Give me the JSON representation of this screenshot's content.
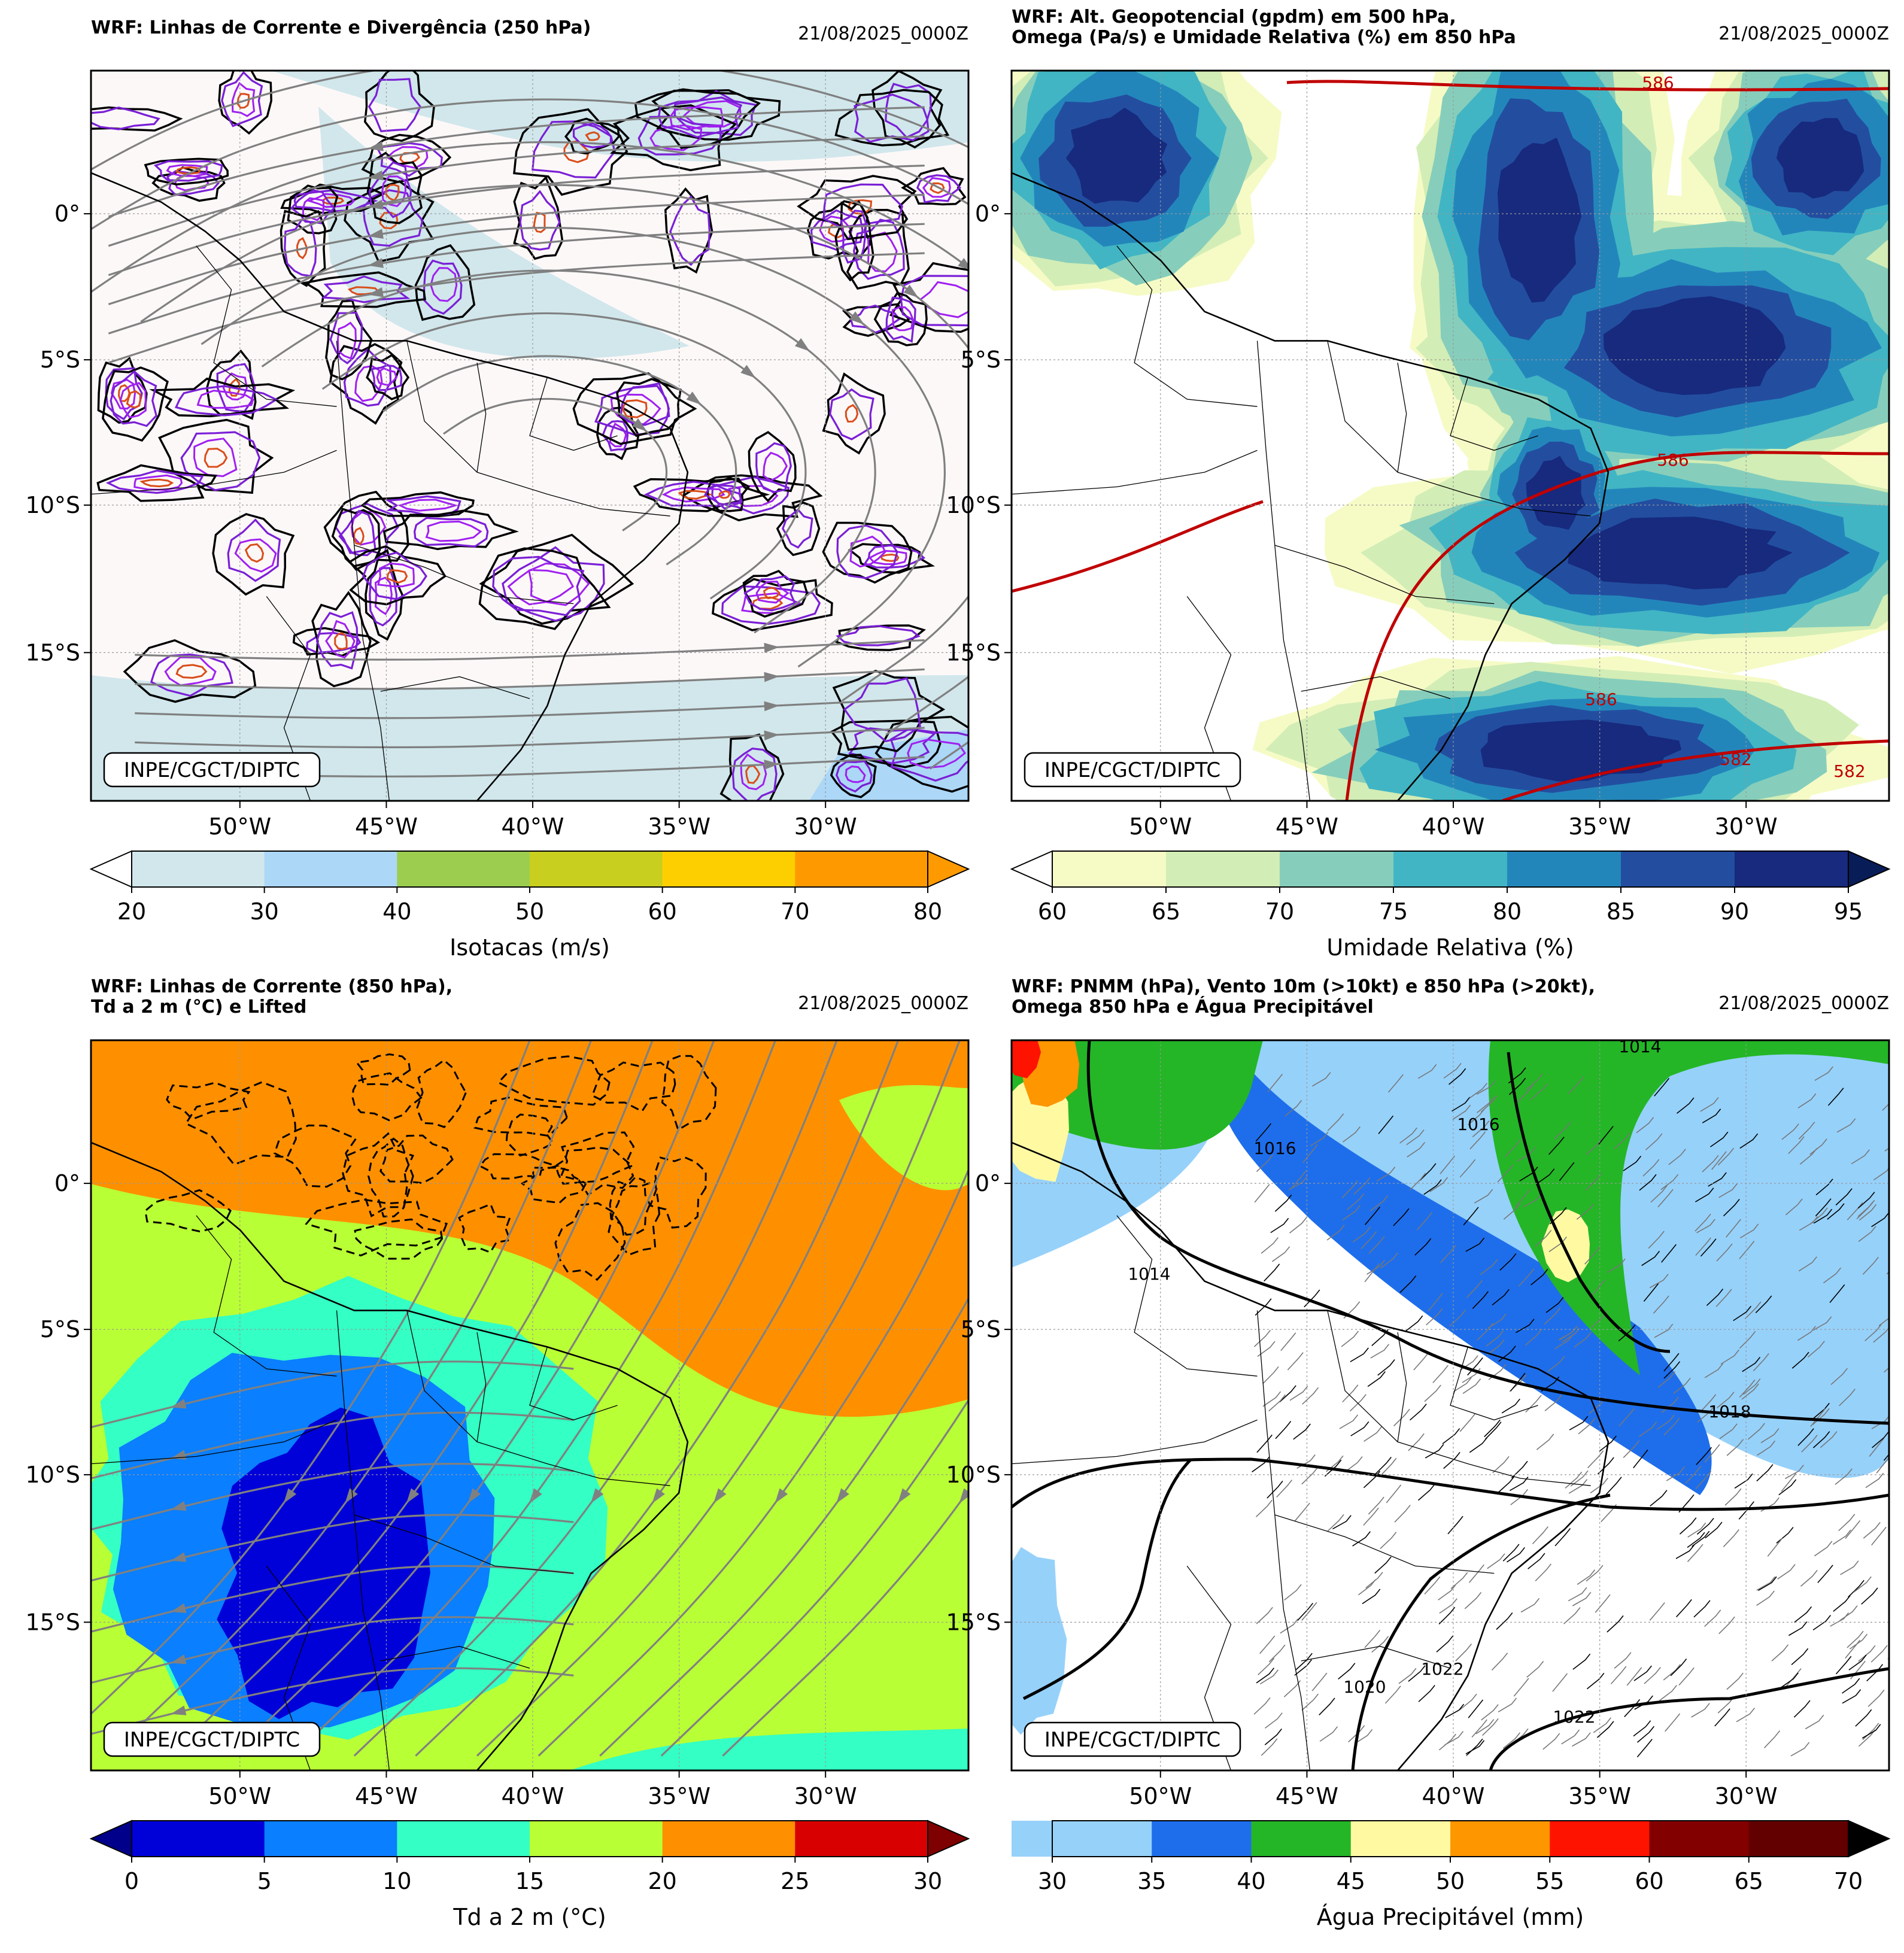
{
  "panels": [
    {
      "id": "p1",
      "title_lines": [
        "WRF: Linhas de Corrente e Divergência (250 hPa)"
      ],
      "timestamp": "21/08/2025_0000Z",
      "credit": "INPE/CGCT/DIPTC",
      "background": "#fdf8f8",
      "colorbar": {
        "label": "Isotacas (m/s)",
        "ticks": [
          "20",
          "30",
          "40",
          "50",
          "60",
          "70",
          "80"
        ],
        "colors": [
          "#d1e7ec",
          "#acd7f7",
          "#9ccd4f",
          "#c8cf1e",
          "#fecf00",
          "#fe9a00"
        ],
        "under": "#ffffff",
        "over": "#fe9a00"
      }
    },
    {
      "id": "p2",
      "title_lines": [
        "WRF: Alt. Geopotencial (gpdm) em 500 hPa,",
        "Omega (Pa/s) e Umidade Relativa (%) em 850 hPa"
      ],
      "timestamp": "21/08/2025_0000Z",
      "credit": "INPE/CGCT/DIPTC",
      "background": "#ffffff",
      "contour_labels": [
        "586",
        "586",
        "586",
        "582",
        "582"
      ],
      "colorbar": {
        "label": "Umidade Relativa (%)",
        "ticks": [
          "60",
          "65",
          "70",
          "75",
          "80",
          "85",
          "90",
          "95"
        ],
        "colors": [
          "#f6fbc6",
          "#d3edb6",
          "#86cebb",
          "#41b5c4",
          "#2386bb",
          "#234ea0",
          "#172a7e"
        ],
        "under": "#ffffff",
        "over": "#081d58"
      }
    },
    {
      "id": "p3",
      "title_lines": [
        "WRF: Linhas de Corrente (850 hPa),",
        "Td a 2 m (°C) e Lifted"
      ],
      "timestamp": "21/08/2025_0000Z",
      "credit": "INPE/CGCT/DIPTC",
      "background": "#fe9000",
      "colorbar": {
        "label": "Td a 2 m (°C)",
        "ticks": [
          "0",
          "5",
          "10",
          "15",
          "20",
          "25",
          "30"
        ],
        "colors": [
          "#0000d9",
          "#0a7fff",
          "#34ffc4",
          "#b9ff35",
          "#fe9000",
          "#d80000"
        ],
        "under": "#00008b",
        "over": "#7f0000"
      }
    },
    {
      "id": "p4",
      "title_lines": [
        "WRF: PNMM (hPa), Vento 10m (>10kt) e 850 hPa (>20kt),",
        "Omega 850 hPa e Água Precipitável"
      ],
      "timestamp": "21/08/2025_0000Z",
      "credit": "INPE/CGCT/DIPTC",
      "background": "#ffffff",
      "contour_labels": [
        "1014",
        "1014",
        "1016",
        "1016",
        "1018",
        "1020",
        "1022",
        "1022"
      ],
      "colorbar": {
        "label": "Água Precipitável (mm)",
        "ticks": [
          "30",
          "35",
          "40",
          "45",
          "50",
          "55",
          "60",
          "65"
        ],
        "end_tick": "70",
        "colors": [
          "#96d1fa",
          "#1e6eeb",
          "#24b627",
          "#fffaa2",
          "#fe9600",
          "#fe1300",
          "#830000",
          "#620000"
        ],
        "over": "#000000"
      }
    }
  ],
  "axes": {
    "lon_ticks": [
      "50°W",
      "45°W",
      "40°W",
      "35°W",
      "30°W"
    ],
    "lat_ticks": [
      "0°",
      "5°S",
      "10°S",
      "15°S"
    ]
  }
}
